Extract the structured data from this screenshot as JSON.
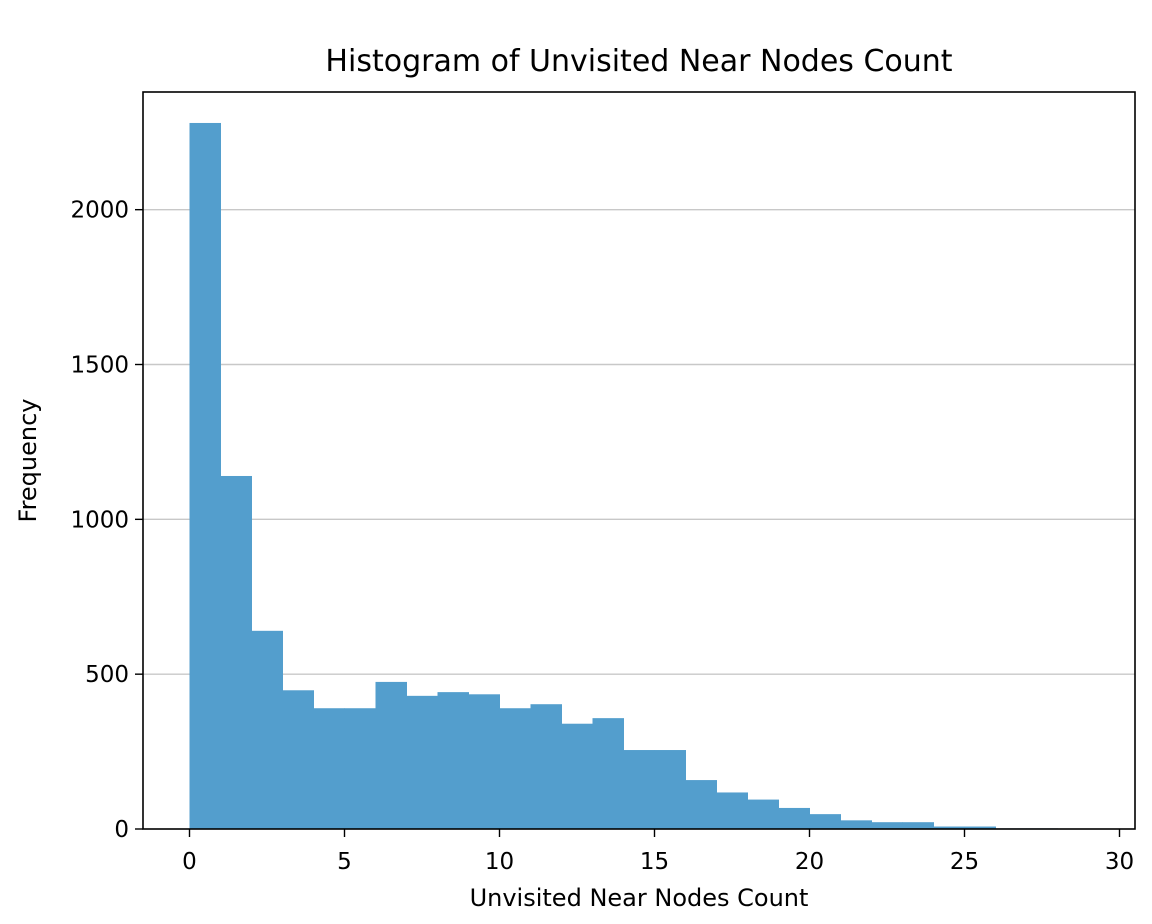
{
  "chart_data": {
    "type": "bar",
    "title": "Histogram of Unvisited Near Nodes Count",
    "xlabel": "Unvisited Near Nodes Count",
    "ylabel": "Frequency",
    "xlim": [
      -1.5,
      30.5
    ],
    "ylim": [
      0,
      2380
    ],
    "xticks": [
      0,
      5,
      10,
      15,
      20,
      25,
      30
    ],
    "yticks": [
      0,
      500,
      1000,
      1500,
      2000
    ],
    "grid": {
      "axis": "y",
      "on": true
    },
    "bar_color": "#539ecd",
    "grid_color": "#c8c8c8",
    "bins": [
      {
        "x0": 0,
        "x1": 1,
        "value": 2280
      },
      {
        "x0": 1,
        "x1": 2,
        "value": 1140
      },
      {
        "x0": 2,
        "x1": 3,
        "value": 640
      },
      {
        "x0": 3,
        "x1": 4,
        "value": 448
      },
      {
        "x0": 4,
        "x1": 5,
        "value": 390
      },
      {
        "x0": 5,
        "x1": 6,
        "value": 390
      },
      {
        "x0": 6,
        "x1": 7,
        "value": 475
      },
      {
        "x0": 7,
        "x1": 8,
        "value": 430
      },
      {
        "x0": 8,
        "x1": 9,
        "value": 442
      },
      {
        "x0": 9,
        "x1": 10,
        "value": 435
      },
      {
        "x0": 10,
        "x1": 11,
        "value": 390
      },
      {
        "x0": 11,
        "x1": 12,
        "value": 403
      },
      {
        "x0": 12,
        "x1": 13,
        "value": 340
      },
      {
        "x0": 13,
        "x1": 14,
        "value": 358
      },
      {
        "x0": 14,
        "x1": 15,
        "value": 255
      },
      {
        "x0": 15,
        "x1": 16,
        "value": 255
      },
      {
        "x0": 16,
        "x1": 17,
        "value": 158
      },
      {
        "x0": 17,
        "x1": 18,
        "value": 118
      },
      {
        "x0": 18,
        "x1": 19,
        "value": 95
      },
      {
        "x0": 19,
        "x1": 20,
        "value": 68
      },
      {
        "x0": 20,
        "x1": 21,
        "value": 48
      },
      {
        "x0": 21,
        "x1": 22,
        "value": 28
      },
      {
        "x0": 22,
        "x1": 23,
        "value": 22
      },
      {
        "x0": 23,
        "x1": 24,
        "value": 22
      },
      {
        "x0": 24,
        "x1": 25,
        "value": 8
      },
      {
        "x0": 25,
        "x1": 26,
        "value": 8
      },
      {
        "x0": 26,
        "x1": 27,
        "value": 2
      },
      {
        "x0": 27,
        "x1": 28,
        "value": 2
      },
      {
        "x0": 28,
        "x1": 29,
        "value": 1
      }
    ]
  }
}
